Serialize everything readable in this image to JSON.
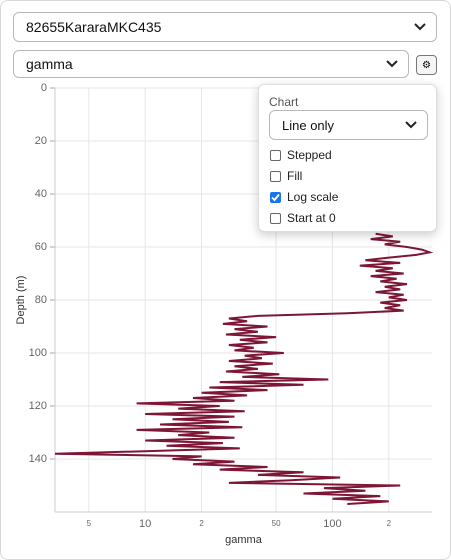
{
  "selectors": {
    "well": "82655KararaMKC435",
    "curve": "gamma"
  },
  "settings": {
    "heading": "Chart",
    "mode": "Line only",
    "options": [
      {
        "label": "Stepped",
        "checked": false
      },
      {
        "label": "Fill",
        "checked": false
      },
      {
        "label": "Log scale",
        "checked": true
      },
      {
        "label": "Start at 0",
        "checked": false
      }
    ]
  },
  "chart_data": {
    "type": "line",
    "xlabel": "gamma",
    "ylabel": "Depth (m)",
    "log_x": true,
    "invert_y": true,
    "grid": true,
    "xlim": [
      3.3,
      340
    ],
    "xticks": [
      5,
      10,
      {
        "value": 20,
        "label": "2"
      },
      50,
      100,
      {
        "value": 200,
        "label": "2"
      }
    ],
    "ylim": [
      0,
      160
    ],
    "yticks": [
      0,
      20,
      40,
      60,
      80,
      100,
      120,
      140
    ],
    "series": [
      {
        "color": "#7d1635",
        "y": [
          55,
          56,
          57,
          58,
          59,
          60,
          61,
          62,
          63,
          64,
          65,
          66,
          67,
          68,
          69,
          70,
          71,
          72,
          73,
          74,
          75,
          76,
          77,
          78,
          79,
          80,
          81,
          82,
          83,
          84,
          85,
          86,
          87,
          88,
          89,
          90,
          91,
          92,
          93,
          94,
          95,
          96,
          97,
          98,
          99,
          100,
          101,
          102,
          103,
          104,
          105,
          106,
          107,
          108,
          109,
          110,
          111,
          112,
          113,
          114,
          115,
          116,
          117,
          118,
          119,
          120,
          121,
          122,
          123,
          124,
          125,
          126,
          127,
          128,
          129,
          130,
          131,
          132,
          133,
          134,
          135,
          136,
          137,
          138,
          139,
          140,
          141,
          142,
          143,
          144,
          145,
          146,
          147,
          148,
          149,
          150,
          151,
          152,
          153,
          154,
          155,
          156,
          157
        ],
        "x": [
          170,
          210,
          160,
          230,
          190,
          250,
          300,
          330,
          280,
          200,
          150,
          230,
          140,
          210,
          170,
          240,
          160,
          220,
          180,
          250,
          190,
          230,
          170,
          240,
          200,
          250,
          180,
          230,
          190,
          240,
          120,
          40,
          28,
          35,
          26,
          45,
          30,
          40,
          27,
          50,
          32,
          45,
          28,
          38,
          30,
          55,
          34,
          42,
          28,
          48,
          30,
          40,
          27,
          52,
          33,
          95,
          25,
          70,
          22,
          45,
          20,
          35,
          18,
          30,
          9,
          25,
          15,
          34,
          10,
          30,
          14,
          28,
          12,
          33,
          9,
          22,
          15,
          30,
          10,
          26,
          13,
          32,
          11,
          3.3,
          20,
          14,
          30,
          18,
          45,
          25,
          70,
          40,
          110,
          60,
          28,
          230,
          90,
          150,
          70,
          180,
          100,
          200,
          120
        ]
      }
    ]
  }
}
